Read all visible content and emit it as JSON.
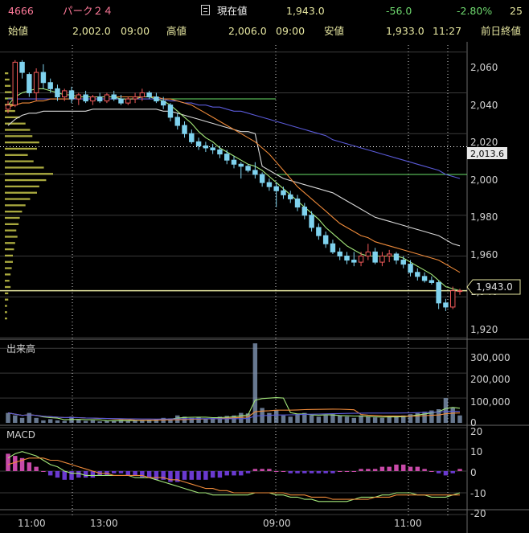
{
  "header": {
    "code": "4666",
    "name": "パーク２４",
    "current_label": "現在値",
    "current_value": "1,943.0",
    "change": "-56.0",
    "change_pct": "-2.80%",
    "overflow": "25",
    "open_label": "始値",
    "open_value": "2,002.0",
    "open_time": "09:00",
    "high_label": "高値",
    "high_value": "2,006.0",
    "high_time": "09:00",
    "low_label": "安値",
    "low_value": "1,933.0",
    "low_time": "11:27",
    "prev_close_label": "前日終値"
  },
  "price_axis": {
    "ticks": [
      "2,060",
      "2,040",
      "2,020",
      "2,000",
      "1,980",
      "1,960",
      "1,940",
      "1,920"
    ],
    "marker_label": "2,013.6",
    "current_label": "1,943.0"
  },
  "volume_panel": {
    "title": "出来高",
    "ticks": [
      "300,000",
      "200,000",
      "100,000",
      "0"
    ]
  },
  "macd_panel": {
    "title": "MACD",
    "ticks": [
      "20",
      "10",
      "0",
      "-10",
      "-20"
    ]
  },
  "time_axis": {
    "labels": [
      "11:00",
      "13:00",
      "09:00",
      "11:00"
    ]
  },
  "colors": {
    "up": "#f05a5a",
    "down": "#7fd2ee",
    "ma_short": "#a4e87a",
    "ma_mid": "#ee8a3a",
    "ma_long": "#5a5ad8",
    "vwap": "#d8d8d8",
    "volume_profile": "#c8c84a"
  },
  "chart_data": {
    "type": "candlestick",
    "price_candles": [
      [
        2032,
        2036,
        2030,
        2034
      ],
      [
        2034,
        2056,
        2033,
        2055
      ],
      [
        2055,
        2056,
        2047,
        2050
      ],
      [
        2049,
        2050,
        2038,
        2040
      ],
      [
        2040,
        2052,
        2036,
        2050
      ],
      [
        2050,
        2054,
        2042,
        2045
      ],
      [
        2045,
        2047,
        2040,
        2042
      ],
      [
        2042,
        2044,
        2036,
        2038
      ],
      [
        2038,
        2042,
        2036,
        2041
      ],
      [
        2041,
        2043,
        2035,
        2037
      ],
      [
        2037,
        2040,
        2034,
        2039
      ],
      [
        2039,
        2041,
        2035,
        2036
      ],
      [
        2036,
        2039,
        2034,
        2038
      ],
      [
        2038,
        2040,
        2035,
        2036
      ],
      [
        2036,
        2040,
        2035,
        2039
      ],
      [
        2039,
        2041,
        2036,
        2037
      ],
      [
        2037,
        2039,
        2034,
        2035
      ],
      [
        2035,
        2038,
        2034,
        2037
      ],
      [
        2037,
        2040,
        2035,
        2038
      ],
      [
        2038,
        2042,
        2036,
        2040
      ],
      [
        2040,
        2041,
        2037,
        2038
      ],
      [
        2038,
        2040,
        2035,
        2036
      ],
      [
        2036,
        2038,
        2032,
        2034
      ],
      [
        2034,
        2035,
        2026,
        2028
      ],
      [
        2028,
        2030,
        2022,
        2024
      ],
      [
        2024,
        2026,
        2018,
        2020
      ],
      [
        2020,
        2022,
        2015,
        2016
      ],
      [
        2016,
        2018,
        2012,
        2014
      ],
      [
        2014,
        2016,
        2011,
        2013
      ],
      [
        2013,
        2015,
        2010,
        2012
      ],
      [
        2012,
        2014,
        2008,
        2010
      ],
      [
        2010,
        2012,
        2005,
        2007
      ],
      [
        2007,
        2009,
        2003,
        2005
      ],
      [
        2005,
        2006,
        1998,
        2004
      ],
      [
        2004,
        2005,
        2001,
        2002
      ],
      [
        2002,
        2006,
        1998,
        2000
      ],
      [
        2000,
        2001,
        1994,
        1996
      ],
      [
        1996,
        1998,
        1992,
        1994
      ],
      [
        1994,
        1996,
        1984,
        1992
      ],
      [
        1992,
        1994,
        1988,
        1990
      ],
      [
        1990,
        1992,
        1986,
        1988
      ],
      [
        1988,
        1990,
        1982,
        1984
      ],
      [
        1984,
        1986,
        1978,
        1980
      ],
      [
        1980,
        1982,
        1972,
        1974
      ],
      [
        1974,
        1976,
        1968,
        1970
      ],
      [
        1970,
        1972,
        1964,
        1966
      ],
      [
        1966,
        1968,
        1961,
        1962
      ],
      [
        1962,
        1964,
        1958,
        1960
      ],
      [
        1960,
        1962,
        1956,
        1958
      ],
      [
        1958,
        1962,
        1955,
        1957
      ],
      [
        1957,
        1962,
        1955,
        1960
      ],
      [
        1960,
        1966,
        1958,
        1962
      ],
      [
        1962,
        1964,
        1956,
        1957
      ],
      [
        1957,
        1962,
        1955,
        1960
      ],
      [
        1960,
        1963,
        1957,
        1961
      ],
      [
        1961,
        1962,
        1956,
        1958
      ],
      [
        1958,
        1960,
        1954,
        1956
      ],
      [
        1956,
        1958,
        1950,
        1952
      ],
      [
        1952,
        1954,
        1948,
        1950
      ],
      [
        1950,
        1952,
        1947,
        1948
      ],
      [
        1948,
        1950,
        1946,
        1947
      ],
      [
        1947,
        1948,
        1934,
        1937
      ],
      [
        1937,
        1939,
        1933,
        1935
      ],
      [
        1935,
        1945,
        1934,
        1943
      ],
      [
        1943,
        1944,
        1941,
        1943
      ]
    ],
    "price_ylim": [
      1920,
      2065
    ],
    "moving_averages": {
      "short_ma": [
        2034,
        2038,
        2040,
        2041,
        2042,
        2042,
        2041,
        2040,
        2039,
        2039,
        2038,
        2038,
        2038,
        2038,
        2038,
        2038,
        2037,
        2037,
        2037,
        2038,
        2038,
        2037,
        2036,
        2034,
        2031,
        2028,
        2025,
        2021,
        2018,
        2016,
        2013,
        2011,
        2009,
        2007,
        2005,
        2004,
        2002,
        1999,
        1996,
        1993,
        1990,
        1987,
        1984,
        1981,
        1978,
        1974,
        1971,
        1968,
        1965,
        1963,
        1961,
        1960,
        1960,
        1960,
        1960,
        1960,
        1959,
        1957,
        1955,
        1953,
        1951,
        1948,
        1945,
        1944,
        1943
      ],
      "mid_ma": [
        2033,
        2034,
        2035,
        2035,
        2036,
        2036,
        2037,
        2037,
        2037,
        2037,
        2038,
        2038,
        2038,
        2038,
        2038,
        2038,
        2038,
        2038,
        2038,
        2038,
        2038,
        2038,
        2037,
        2037,
        2036,
        2035,
        2034,
        2032,
        2030,
        2028,
        2026,
        2024,
        2022,
        2020,
        2018,
        2016,
        2013,
        2010,
        2006,
        2002,
        1998,
        1994,
        1991,
        1988,
        1985,
        1982,
        1979,
        1976,
        1974,
        1972,
        1970,
        1969,
        1967,
        1966,
        1965,
        1964,
        1963,
        1962,
        1961,
        1960,
        1959,
        1958,
        1956,
        1954,
        1952
      ],
      "long_ma": [
        2037,
        2037,
        2037,
        2037,
        2037,
        2037,
        2037,
        2037,
        2037,
        2037,
        2037,
        2037,
        2037,
        2037,
        2037,
        2037,
        2037,
        2037,
        2037,
        2037,
        2037,
        2037,
        2037,
        2036,
        2036,
        2035,
        2035,
        2034,
        2034,
        2033,
        2033,
        2032,
        2031,
        2031,
        2030,
        2029,
        2028,
        2027,
        2026,
        2025,
        2024,
        2023,
        2022,
        2021,
        2020,
        2019,
        2017,
        2016,
        2015,
        2014,
        2013,
        2012,
        2011,
        2010,
        2009,
        2008,
        2007,
        2006,
        2005,
        2004,
        2003,
        2002,
        2000,
        1999,
        1998
      ],
      "vwap": [
        2024,
        2027,
        2029,
        2030,
        2030,
        2031,
        2031,
        2031,
        2031,
        2031,
        2031,
        2031,
        2032,
        2032,
        2032,
        2032,
        2032,
        2032,
        2032,
        2032,
        2032,
        2032,
        2031,
        2031,
        2030,
        2029,
        2028,
        2027,
        2026,
        2025,
        2024,
        2023,
        2022,
        2021,
        2021,
        2020,
        2004,
        2002,
        2000,
        1998,
        1997,
        1996,
        1995,
        1994,
        1993,
        1992,
        1991,
        1989,
        1987,
        1985,
        1983,
        1981,
        1979,
        1978,
        1977,
        1976,
        1975,
        1974,
        1973,
        1972,
        1971,
        1970,
        1968,
        1966,
        1965
      ]
    },
    "reference_lines": [
      2037,
      2000,
      2013.6,
      1943
    ],
    "volume": [
      40000,
      30000,
      20000,
      40000,
      20000,
      10000,
      15000,
      10000,
      8000,
      25000,
      12000,
      8000,
      10000,
      6000,
      8000,
      10000,
      12000,
      8000,
      10000,
      9000,
      12000,
      15000,
      20000,
      18000,
      30000,
      25000,
      20000,
      22000,
      18000,
      20000,
      25000,
      28000,
      30000,
      40000,
      38000,
      320000,
      60000,
      40000,
      50000,
      30000,
      25000,
      35000,
      40000,
      30000,
      25000,
      30000,
      35000,
      28000,
      25000,
      20000,
      30000,
      25000,
      22000,
      20000,
      25000,
      28000,
      30000,
      35000,
      40000,
      45000,
      50000,
      55000,
      100000,
      60000,
      30000
    ],
    "volume_ylim": [
      0,
      330000
    ],
    "macd_hist": [
      8,
      7,
      6,
      4,
      2,
      0,
      -2,
      -3,
      -4,
      -4,
      -3,
      -3,
      -3,
      -2,
      -2,
      -1,
      -1,
      -2,
      -2,
      -3,
      -3,
      -4,
      -4,
      -5,
      -5,
      -4,
      -4,
      -4,
      -4,
      -3,
      -3,
      -2,
      -2,
      -2,
      -1,
      1,
      1,
      1,
      0,
      0,
      -1,
      -1,
      -1,
      -1,
      -1,
      -1,
      -1,
      0,
      0,
      0,
      1,
      1,
      1,
      2,
      2,
      3,
      3,
      2,
      2,
      1,
      0,
      -1,
      -2,
      -1,
      1
    ],
    "macd_line": [
      6,
      8,
      9,
      8,
      7,
      5,
      3,
      2,
      0,
      -1,
      -1,
      -2,
      -2,
      -2,
      -2,
      -2,
      -2,
      -2,
      -3,
      -3,
      -3,
      -4,
      -5,
      -6,
      -7,
      -8,
      -9,
      -10,
      -10,
      -11,
      -11,
      -11,
      -11,
      -11,
      -11,
      -10,
      -10,
      -10,
      -11,
      -11,
      -12,
      -12,
      -13,
      -13,
      -14,
      -14,
      -14,
      -14,
      -14,
      -13,
      -12,
      -12,
      -12,
      -11,
      -11,
      -10,
      -10,
      -10,
      -11,
      -11,
      -12,
      -12,
      -12,
      -11,
      -10
    ],
    "macd_signal": [
      3,
      4,
      5,
      6,
      6,
      6,
      5,
      5,
      4,
      3,
      2,
      1,
      0,
      -1,
      -1,
      -2,
      -2,
      -2,
      -2,
      -2,
      -3,
      -3,
      -3,
      -4,
      -4,
      -5,
      -6,
      -7,
      -8,
      -8,
      -9,
      -9,
      -10,
      -10,
      -10,
      -10,
      -10,
      -10,
      -10,
      -10,
      -11,
      -11,
      -11,
      -12,
      -12,
      -12,
      -13,
      -13,
      -13,
      -13,
      -13,
      -13,
      -12,
      -12,
      -12,
      -11,
      -11,
      -11,
      -11,
      -11,
      -11,
      -11,
      -11,
      -11,
      -11
    ],
    "macd_ylim": [
      -20,
      20
    ],
    "volume_profile": [
      3,
      4,
      5,
      6,
      8,
      10,
      9,
      13,
      18,
      22,
      24,
      30,
      28,
      20,
      25,
      34,
      42,
      36,
      30,
      28,
      22,
      18,
      15,
      13,
      12,
      10,
      11,
      9,
      8,
      7,
      7,
      6,
      5,
      4,
      5,
      3,
      3,
      2,
      2,
      2
    ]
  }
}
